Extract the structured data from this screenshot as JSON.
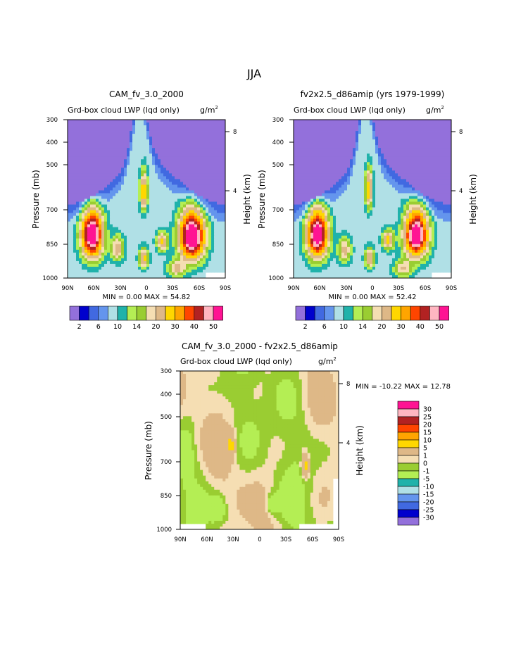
{
  "page_title": "JJA",
  "chart_data": [
    {
      "type": "heatmap",
      "title": "CAM_fv_3.0_2000",
      "subtitle": "Grd-box cloud LWP (lqd only)",
      "units": "g/m",
      "units_exp": "2",
      "xlabel": "",
      "ylabel": "Pressure (mb)",
      "y2label": "Height (km)",
      "x_ticks": [
        "90N",
        "60N",
        "30N",
        "0",
        "30S",
        "60S",
        "90S"
      ],
      "y_ticks": [
        "300",
        "400",
        "500",
        "700",
        "850",
        "1000"
      ],
      "y2_ticks": [
        "8",
        "4"
      ],
      "stats": {
        "min_label": "MIN =",
        "min": "0.00",
        "max_label": "MAX =",
        "max": "54.82"
      },
      "colorbar": {
        "colors": [
          "#9370DB",
          "#0000CD",
          "#4169E1",
          "#6495ED",
          "#B0E0E6",
          "#20B2AA",
          "#B4EE54",
          "#9ACD32",
          "#F5DEB3",
          "#DEB887",
          "#FFD700",
          "#FFA500",
          "#FF4500",
          "#B22222",
          "#FFB6C1",
          "#FF1493"
        ],
        "labels": [
          "2",
          "6",
          "10",
          "14",
          "20",
          "30",
          "40",
          "50"
        ]
      },
      "features": [
        {
          "lat": 62,
          "p": 720,
          "amp": 52,
          "sx": 11,
          "sp": 120
        },
        {
          "lat": -52,
          "p": 730,
          "amp": 55,
          "sx": 13,
          "sp": 120
        },
        {
          "lat": 3,
          "p": 520,
          "amp": 22,
          "sx": 4,
          "sp": 70
        },
        {
          "lat": 33,
          "p": 800,
          "amp": 14,
          "sx": 7,
          "sp": 70
        },
        {
          "lat": -18,
          "p": 760,
          "amp": 18,
          "sx": 6,
          "sp": 50
        },
        {
          "lat": 3,
          "p": 860,
          "amp": 18,
          "sx": 5,
          "sp": 60
        },
        {
          "lat": -35,
          "p": 930,
          "amp": 12,
          "sx": 10,
          "sp": 60
        }
      ]
    },
    {
      "type": "heatmap",
      "title": "fv2x2.5_d86amip (yrs 1979-1999)",
      "subtitle": "Grd-box cloud LWP (lqd only)",
      "units": "g/m",
      "units_exp": "2",
      "xlabel": "",
      "ylabel": "Pressure (mb)",
      "y2label": "Height (km)",
      "x_ticks": [
        "90N",
        "60N",
        "30N",
        "0",
        "30S",
        "60S",
        "90S"
      ],
      "y_ticks": [
        "300",
        "400",
        "500",
        "700",
        "850",
        "1000"
      ],
      "y2_ticks": [
        "8",
        "4"
      ],
      "stats": {
        "min_label": "MIN =",
        "min": "0.00",
        "max_label": "MAX =",
        "max": "52.42"
      },
      "colorbar": {
        "colors": [
          "#9370DB",
          "#0000CD",
          "#4169E1",
          "#6495ED",
          "#B0E0E6",
          "#20B2AA",
          "#B4EE54",
          "#9ACD32",
          "#F5DEB3",
          "#DEB887",
          "#FFD700",
          "#FFA500",
          "#FF4500",
          "#B22222",
          "#FFB6C1",
          "#FF1493"
        ],
        "labels": [
          "2",
          "6",
          "10",
          "14",
          "20",
          "30",
          "40",
          "50"
        ]
      },
      "features": [
        {
          "lat": 63,
          "p": 720,
          "amp": 50,
          "sx": 11,
          "sp": 120
        },
        {
          "lat": -50,
          "p": 720,
          "amp": 52,
          "sx": 12,
          "sp": 115
        },
        {
          "lat": 4,
          "p": 510,
          "amp": 21,
          "sx": 4,
          "sp": 70
        },
        {
          "lat": 32,
          "p": 810,
          "amp": 13,
          "sx": 7,
          "sp": 70
        },
        {
          "lat": -18,
          "p": 750,
          "amp": 20,
          "sx": 6,
          "sp": 50
        },
        {
          "lat": 3,
          "p": 860,
          "amp": 17,
          "sx": 5,
          "sp": 60
        },
        {
          "lat": -35,
          "p": 930,
          "amp": 11,
          "sx": 10,
          "sp": 60
        }
      ]
    },
    {
      "type": "heatmap",
      "title": "CAM_fv_3.0_2000 - fv2x2.5_d86amip",
      "subtitle": "Grd-box cloud LWP (lqd only)",
      "units": "g/m",
      "units_exp": "2",
      "xlabel": "",
      "ylabel": "Pressure (mb)",
      "y2label": "Height (km)",
      "x_ticks": [
        "90N",
        "60N",
        "30N",
        "0",
        "30S",
        "60S",
        "90S"
      ],
      "y_ticks": [
        "300",
        "400",
        "500",
        "700",
        "850",
        "1000"
      ],
      "y2_ticks": [
        "8",
        "4"
      ],
      "stats": {
        "min_label": "MIN =",
        "min": "-10.22",
        "max_label": "MAX =",
        "max": "12.78"
      },
      "colorbar": {
        "colors": [
          "#9370DB",
          "#0000CD",
          "#4169E1",
          "#6495ED",
          "#B0E0E6",
          "#20B2AA",
          "#B4EE54",
          "#9ACD32",
          "#F5DEB3",
          "#DEB887",
          "#FFD700",
          "#FFA500",
          "#FF4500",
          "#B22222",
          "#FFB6C1",
          "#FF1493"
        ],
        "labels": [
          "30",
          "25",
          "20",
          "15",
          "10",
          "5",
          "1",
          "0",
          "-1",
          "-5",
          "-10",
          "-15",
          "-20",
          "-25",
          "-30"
        ]
      }
    }
  ]
}
